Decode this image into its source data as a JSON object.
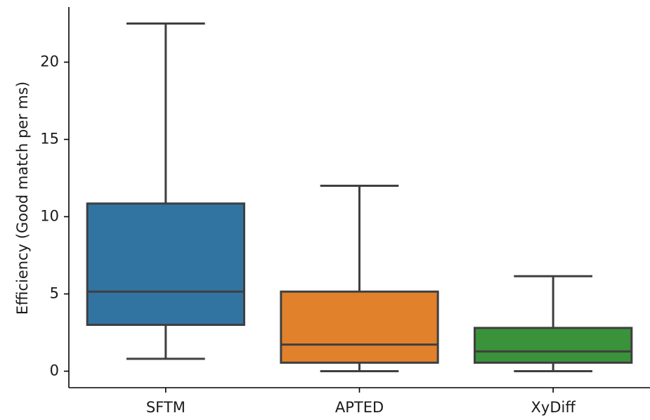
{
  "chart_data": {
    "type": "box",
    "title": "",
    "xlabel": "",
    "ylabel": "Efficiency (Good match per ms)",
    "ylim": [
      -1.1,
      23.6
    ],
    "yticks": [
      0,
      5,
      10,
      15,
      20
    ],
    "grid": false,
    "categories": [
      "SFTM",
      "APTED",
      "XyDiff"
    ],
    "boxes": [
      {
        "name": "SFTM",
        "whisker_low": 0.8,
        "q1": 3.0,
        "median": 5.15,
        "q3": 10.85,
        "whisker_high": 22.5,
        "color": "#3274a1"
      },
      {
        "name": "APTED",
        "whisker_low": 0.0,
        "q1": 0.55,
        "median": 1.72,
        "q3": 5.15,
        "whisker_high": 12.0,
        "color": "#e1812c"
      },
      {
        "name": "XyDiff",
        "whisker_low": 0.0,
        "q1": 0.55,
        "median": 1.28,
        "q3": 2.8,
        "whisker_high": 6.15,
        "color": "#3a923a"
      }
    ]
  }
}
